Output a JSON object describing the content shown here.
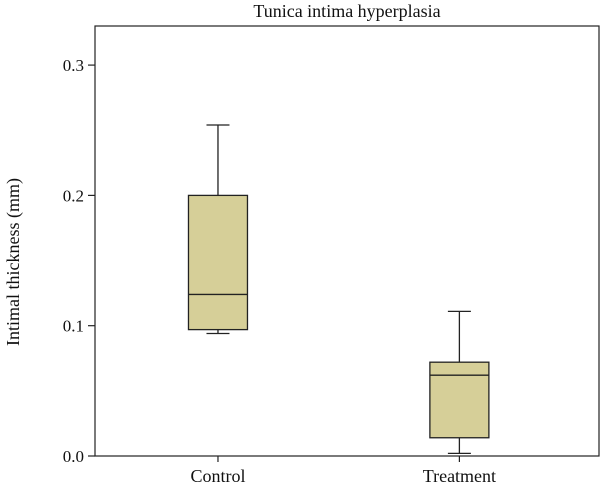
{
  "chart_data": {
    "type": "box",
    "title": "Tunica intima hyperplasia",
    "xlabel": "",
    "ylabel": "Intimal thickness (mm)",
    "ylim": [
      0.0,
      0.33
    ],
    "yticks": [
      0.0,
      0.1,
      0.2,
      0.3
    ],
    "ytick_labels": [
      "0.0",
      "0.1",
      "0.2",
      "0.3"
    ],
    "grid": false,
    "box_color": "#d6cf98",
    "categories": [
      "Control",
      "Treatment"
    ],
    "boxes": [
      {
        "category": "Control",
        "min": 0.094,
        "q1": 0.097,
        "median": 0.124,
        "q3": 0.2,
        "max": 0.254
      },
      {
        "category": "Treatment",
        "min": 0.002,
        "q1": 0.014,
        "median": 0.062,
        "q3": 0.072,
        "max": 0.111
      }
    ]
  }
}
